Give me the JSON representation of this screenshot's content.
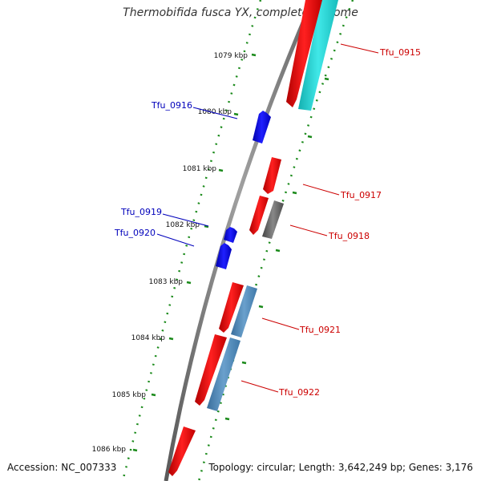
{
  "title": "Thermobifida fusca YX, complete genome",
  "footer": {
    "accession": "Accession: NC_007333",
    "summary": "Topology: circular; Length: 3,642,249 bp; Genes: 3,176"
  },
  "ticks": [
    {
      "label": "1079 kbp"
    },
    {
      "label": "1080 kbp"
    },
    {
      "label": "1081 kbp"
    },
    {
      "label": "1082 kbp"
    },
    {
      "label": "1083 kbp"
    },
    {
      "label": "1084 kbp"
    },
    {
      "label": "1085 kbp"
    },
    {
      "label": "1086 kbp"
    }
  ],
  "genes": [
    {
      "name": "Tfu_0915",
      "color": "#cc0000"
    },
    {
      "name": "Tfu_0916",
      "color": "#0000bb"
    },
    {
      "name": "Tfu_0917",
      "color": "#cc0000"
    },
    {
      "name": "Tfu_0918",
      "color": "#cc0000"
    },
    {
      "name": "Tfu_0919",
      "color": "#0000bb"
    },
    {
      "name": "Tfu_0920",
      "color": "#0000bb"
    },
    {
      "name": "Tfu_0921",
      "color": "#cc0000"
    },
    {
      "name": "Tfu_0922",
      "color": "#cc0000"
    }
  ],
  "colors": {
    "forward_strand": "#ff0000",
    "reverse_strand": "#0000ff",
    "backbone": "#777777",
    "tick_marks": "#1a8a1a",
    "cyan_track": "#22cccc",
    "steel_track": "#4a86b8",
    "gray_track": "#555555"
  }
}
